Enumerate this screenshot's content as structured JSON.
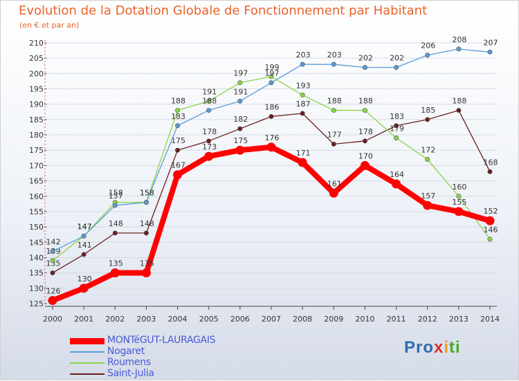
{
  "title": "Evolution de la Dotation Globale de Fonctionnement par Habitant",
  "subtitle": "(en € et par an)",
  "logo": {
    "p": "Pro",
    "x": "x",
    "i": "i",
    "ti": "ti"
  },
  "chart_data": {
    "type": "line",
    "title": "Evolution de la Dotation Globale de Fonctionnement par Habitant",
    "ylabel": "(en € et par an)",
    "xlabel": "",
    "ylim": [
      125,
      210
    ],
    "yticks": [
      125,
      130,
      135,
      140,
      145,
      150,
      155,
      160,
      165,
      170,
      175,
      180,
      185,
      190,
      195,
      200,
      205,
      210
    ],
    "categories": [
      "2000",
      "2001",
      "2002",
      "2003",
      "2004",
      "2005",
      "2006",
      "2007",
      "2008",
      "2009",
      "2010",
      "2011",
      "2012",
      "2013",
      "2014"
    ],
    "series": [
      {
        "name": "Saint-Julia",
        "color": "#6b1e1e",
        "values": [
          135,
          141,
          148,
          148,
          175,
          178,
          182,
          186,
          187,
          177,
          178,
          183,
          185,
          188,
          168
        ]
      },
      {
        "name": "Roumens",
        "color": "#88d44a",
        "values": [
          139,
          147,
          158,
          158,
          188,
          191,
          197,
          199,
          193,
          188,
          188,
          179,
          172,
          160,
          146
        ]
      },
      {
        "name": "Nogaret",
        "color": "#5b9bd5",
        "values": [
          142,
          147,
          157,
          158,
          183,
          188,
          191,
          197,
          203,
          203,
          202,
          202,
          206,
          208,
          207
        ]
      },
      {
        "name": "MONTéGUT-LAURAGAIS",
        "color": "#ff0000",
        "values": [
          126,
          130,
          135,
          135,
          167,
          173,
          175,
          176,
          171,
          161,
          170,
          164,
          157,
          155,
          152
        ]
      }
    ]
  },
  "legend": [
    {
      "name": "MONTéGUT-LAURAGAIS",
      "line_color": "#ff0000",
      "text_color": "#4a5ad8"
    },
    {
      "name": "Nogaret",
      "line_color": "#5b9bd5",
      "text_color": "#4a5ad8"
    },
    {
      "name": "Roumens",
      "line_color": "#88d44a",
      "text_color": "#4a5ad8"
    },
    {
      "name": "Saint-Julia",
      "line_color": "#6b1e1e",
      "text_color": "#4a5ad8"
    }
  ]
}
